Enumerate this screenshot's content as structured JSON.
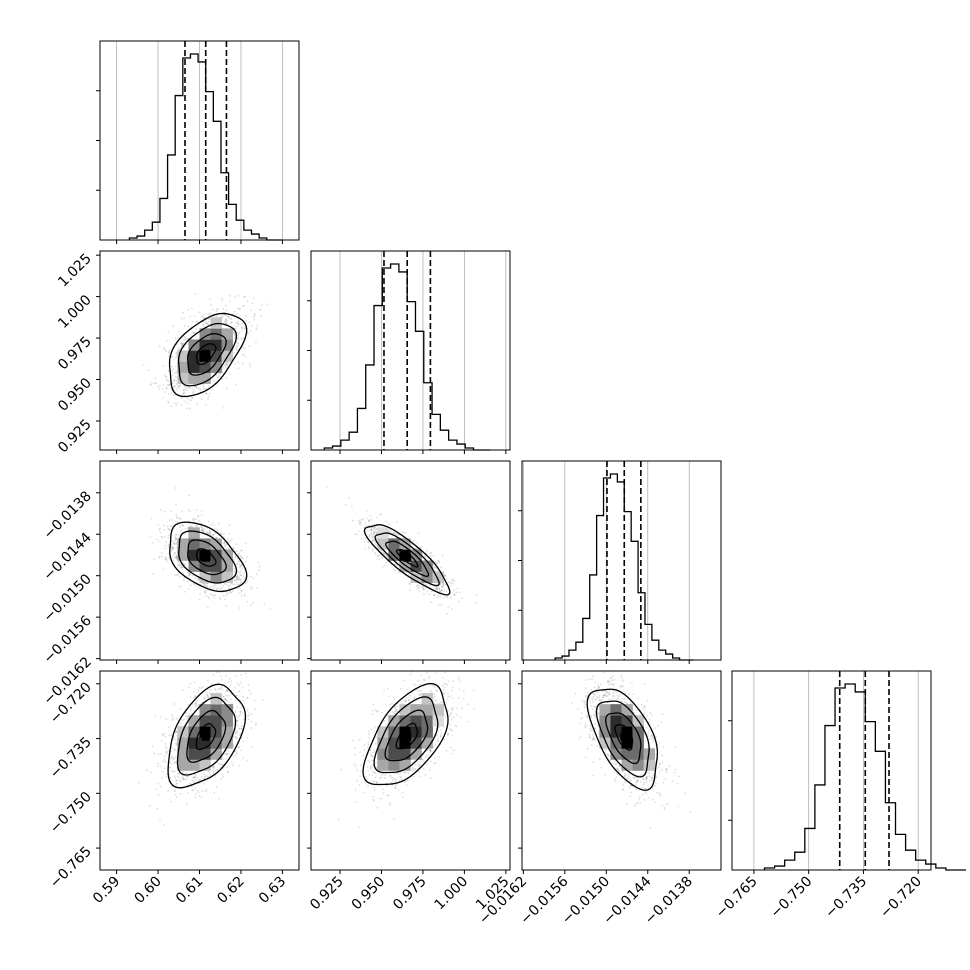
{
  "chart_data": {
    "type": "corner",
    "grid": true,
    "parameters": [
      {
        "mean": 0.6115,
        "sd": 0.0046,
        "range": [
          0.586,
          0.634
        ],
        "ticks": [
          0.59,
          0.6,
          0.61,
          0.62,
          0.63
        ],
        "tick_labels": [
          "0.59",
          "0.60",
          "0.61",
          "0.62",
          "0.63"
        ],
        "quantiles": [
          0.6065,
          0.6115,
          0.6165
        ]
      },
      {
        "mean": 0.9655,
        "sd": 0.0125,
        "range": [
          0.9075,
          1.0275
        ],
        "ticks": [
          0.925,
          0.95,
          0.975,
          1.0,
          1.025
        ],
        "tick_labels": [
          "0.925",
          "0.950",
          "0.975",
          "1.000",
          "1.025"
        ],
        "quantiles": [
          0.9515,
          0.9655,
          0.9795
        ]
      },
      {
        "mean": -0.01474,
        "sd": 0.00025,
        "range": [
          -0.01622,
          -0.01334
        ],
        "ticks": [
          -0.0162,
          -0.0156,
          -0.015,
          -0.0144,
          -0.0138
        ],
        "tick_labels": [
          "−0.0162",
          "−0.0156",
          "−0.0150",
          "−0.0144",
          "−0.0138"
        ],
        "quantiles": [
          -0.01499,
          -0.01474,
          -0.0145
        ]
      },
      {
        "mean": -0.7345,
        "sd": 0.0069,
        "range": [
          -0.771,
          -0.7165
        ],
        "ticks": [
          -0.765,
          -0.75,
          -0.735,
          -0.72
        ],
        "tick_labels": [
          "−0.765",
          "−0.750",
          "−0.735",
          "−0.720"
        ],
        "quantiles": [
          -0.7415,
          -0.7345,
          -0.728
        ]
      }
    ],
    "correlations": [
      [
        0,
        1,
        0.5
      ],
      [
        0,
        2,
        -0.45
      ],
      [
        0,
        3,
        0.45
      ],
      [
        1,
        2,
        -0.85
      ],
      [
        1,
        3,
        0.55
      ],
      [
        2,
        3,
        -0.55
      ]
    ],
    "histograms": [
      [
        1,
        2,
        5,
        9,
        21,
        43,
        73,
        92,
        94,
        90,
        75,
        60,
        34,
        18,
        10,
        5,
        3,
        1,
        0,
        0
      ],
      [
        1,
        2,
        5,
        9,
        21,
        43,
        73,
        92,
        94,
        90,
        75,
        60,
        34,
        18,
        10,
        5,
        3,
        1,
        0,
        0
      ],
      [
        1,
        2,
        5,
        9,
        21,
        43,
        73,
        92,
        94,
        90,
        75,
        60,
        34,
        18,
        10,
        5,
        3,
        1,
        0,
        0
      ],
      [
        1,
        2,
        5,
        9,
        21,
        43,
        73,
        92,
        94,
        90,
        75,
        60,
        34,
        18,
        10,
        5,
        3,
        1,
        0,
        0
      ]
    ],
    "contour_levels_sigma": [
      0.5,
      1.0,
      1.5,
      2.0
    ],
    "samples_per_panel": 1400
  },
  "colors": {
    "line": "#000000",
    "grid": "#b0b0b0",
    "points": "#000000",
    "background": "#ffffff"
  }
}
